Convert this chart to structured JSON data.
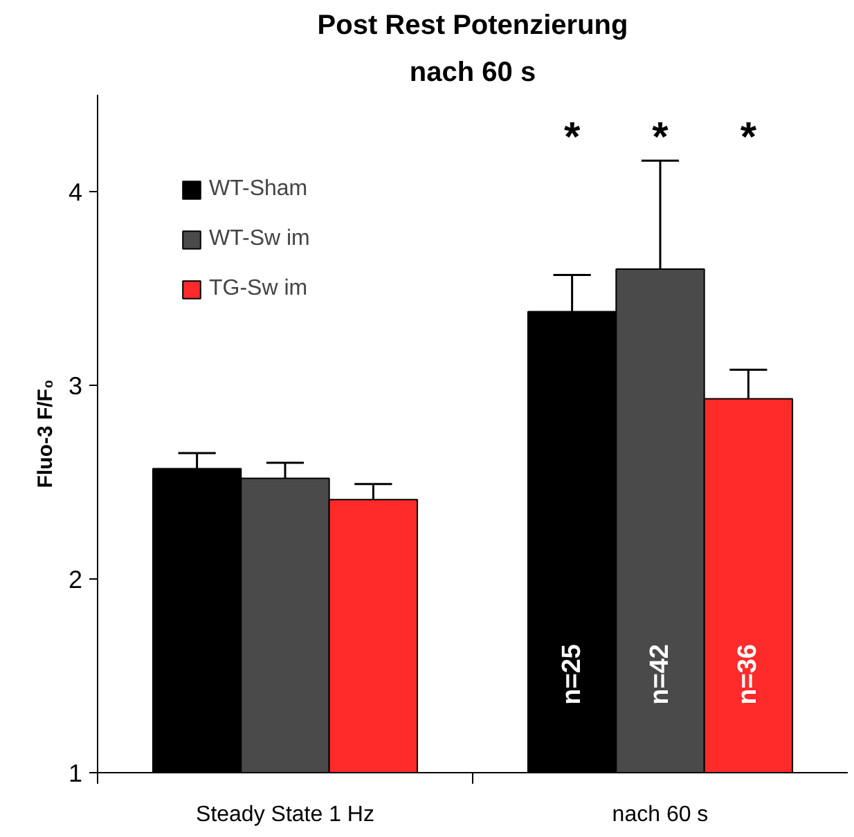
{
  "chart_data": {
    "type": "bar",
    "title": "Post Rest Potenzierung",
    "subtitle": "nach 60 s",
    "ylabel": "Fluo-3 F/F₀",
    "categories": [
      "Steady State 1 Hz",
      "nach 60 s"
    ],
    "series": [
      {
        "name": "WT-Sham",
        "color": "#000000",
        "values": [
          2.57,
          3.38
        ],
        "errors": [
          [
            2.57,
            2.65
          ],
          [
            3.38,
            3.57
          ]
        ]
      },
      {
        "name": "WT-Sw im",
        "color": "#4a4a4a",
        "values": [
          2.52,
          3.6
        ],
        "errors": [
          [
            2.52,
            2.6
          ],
          [
            3.6,
            4.16
          ]
        ]
      },
      {
        "name": "TG-Sw im",
        "color": "#ff2a2a",
        "values": [
          2.41,
          2.93
        ],
        "errors": [
          [
            2.41,
            2.49
          ],
          [
            2.93,
            3.08
          ]
        ]
      }
    ],
    "ylim": [
      1,
      4.5
    ],
    "yticks": [
      1,
      2,
      3,
      4
    ],
    "grid": false,
    "legend": "top left",
    "annotations": [
      "*",
      "*",
      "*",
      "n=25",
      "n=42",
      "n=36"
    ]
  }
}
